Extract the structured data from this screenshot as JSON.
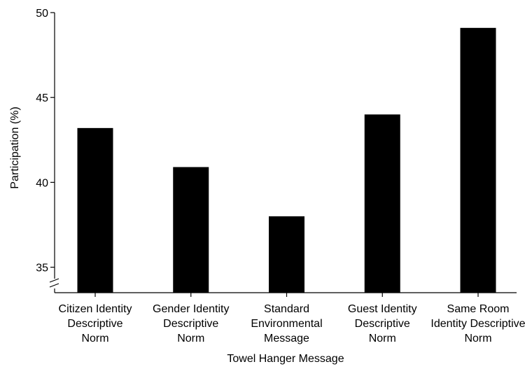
{
  "chart_data": {
    "type": "bar",
    "title": "",
    "xlabel": "Towel Hanger Message",
    "ylabel": "Participation (%)",
    "ylim": [
      33.5,
      50
    ],
    "yticks": [
      35,
      40,
      45,
      50
    ],
    "axis_break": true,
    "grid": false,
    "legend": "none",
    "categories": [
      [
        "Citizen Identity",
        "Descriptive",
        "Norm"
      ],
      [
        "Gender Identity",
        "Descriptive",
        "Norm"
      ],
      [
        "Standard",
        "Environmental",
        "Message"
      ],
      [
        "Guest Identity",
        "Descriptive",
        "Norm"
      ],
      [
        "Same Room",
        "Identity Descriptive",
        "Norm"
      ]
    ],
    "values": [
      43.2,
      40.9,
      38.0,
      44.0,
      49.1
    ],
    "bar_color": "#000000"
  }
}
